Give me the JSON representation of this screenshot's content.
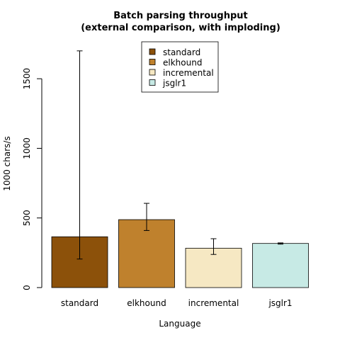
{
  "chart_data": {
    "type": "bar",
    "title": [
      "Batch parsing throughput",
      "(external comparison, with imploding)"
    ],
    "xlabel": "Language",
    "ylabel": "1000 chars/s",
    "categories": [
      "standard",
      "elkhound",
      "incremental",
      "jsglr1"
    ],
    "values": [
      365,
      488,
      283,
      317
    ],
    "error_low": [
      205,
      410,
      238,
      312
    ],
    "error_high": [
      1700,
      605,
      351,
      321
    ],
    "colors": [
      "#8c510a",
      "#bf812d",
      "#f6e8c3",
      "#c7eae5"
    ],
    "ylim": [
      0,
      1750
    ],
    "yticks": [
      0,
      500,
      1000,
      1500
    ],
    "legend": {
      "placement": "top-center",
      "entries": [
        "standard",
        "elkhound",
        "incremental",
        "jsglr1"
      ]
    },
    "grid": false
  }
}
